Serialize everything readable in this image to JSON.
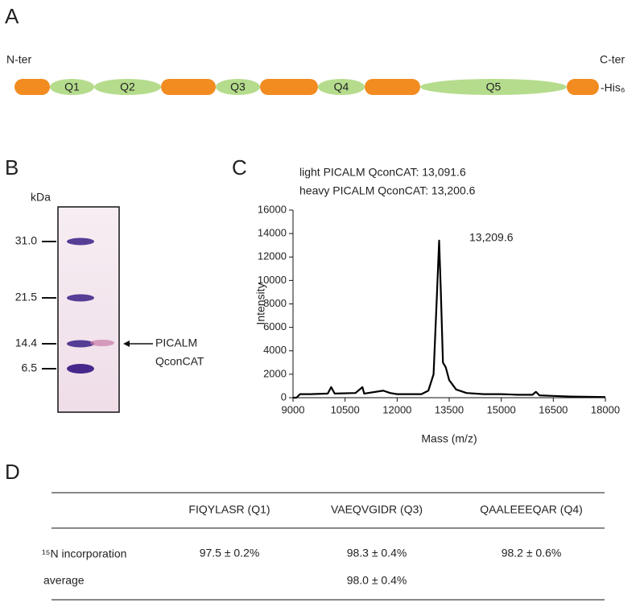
{
  "panel_a": {
    "letter": "A",
    "n_term": "N-ter",
    "c_term": "C-ter",
    "tag": "-His₆",
    "domains": [
      "Q1",
      "Q2",
      "Q3",
      "Q4",
      "Q5"
    ]
  },
  "panel_b": {
    "letter": "B",
    "unit": "kDa",
    "markers": [
      "31.0",
      "21.5",
      "14.4",
      "6.5"
    ],
    "band_label": [
      "PICALM",
      "QconCAT"
    ]
  },
  "chart_data": {
    "type": "line",
    "letter": "C",
    "title_lines": [
      "light PICALM QconCAT: 13,091.6",
      "heavy PICALM QconCAT: 13,200.6"
    ],
    "x_label": "Mass (m/z)",
    "y_label": "Intensity",
    "peak_label": "13,209.6",
    "xlim": [
      9000,
      18000
    ],
    "xticks": [
      9000,
      10500,
      12000,
      13500,
      15000,
      16500,
      18000
    ],
    "ylim": [
      0,
      16000
    ],
    "yticks": [
      0,
      2000,
      4000,
      6000,
      8000,
      10000,
      12000,
      14000,
      16000
    ],
    "x": [
      9000,
      9100,
      9200,
      9500,
      10000,
      10100,
      10200,
      10800,
      11000,
      11050,
      11600,
      11800,
      12000,
      12400,
      12700,
      12900,
      13050,
      13150,
      13210,
      13260,
      13320,
      13400,
      13500,
      13700,
      14000,
      14500,
      15000,
      15500,
      15900,
      16000,
      16100,
      16500,
      17000,
      18000
    ],
    "series": [
      {
        "name": "Intensity",
        "color": "#000000",
        "values": [
          0,
          0,
          300,
          300,
          350,
          900,
          350,
          400,
          900,
          350,
          600,
          400,
          300,
          300,
          300,
          600,
          2000,
          9000,
          13400,
          9000,
          3000,
          2600,
          1500,
          700,
          400,
          300,
          300,
          250,
          250,
          500,
          200,
          150,
          100,
          50
        ]
      }
    ]
  },
  "panel_d": {
    "letter": "D",
    "columns": [
      "FIQYLASR (Q1)",
      "VAEQVGIDR (Q3)",
      "QAALEEEQAR (Q4)"
    ],
    "row_1": {
      "label": "¹⁵N incorporation",
      "cells": [
        "97.5 ± 0.2%",
        "98.3 ± 0.4%",
        "98.2 ± 0.6%"
      ]
    },
    "row_2": {
      "label": "average",
      "value": "98.0 ± 0.4%"
    }
  }
}
